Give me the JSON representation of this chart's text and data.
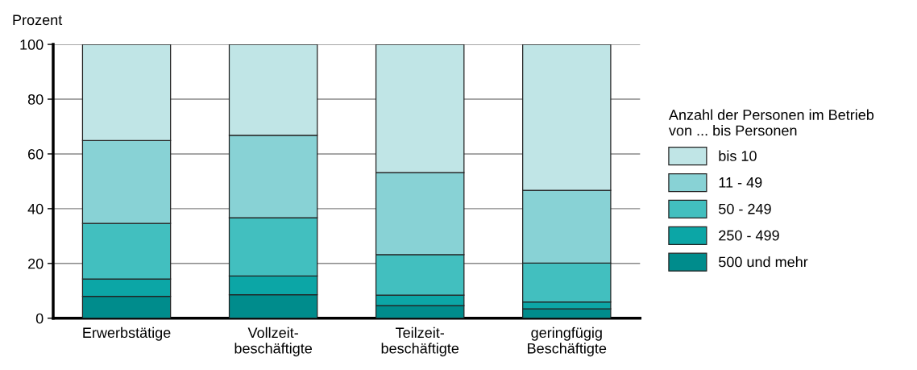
{
  "chart_data": {
    "type": "bar",
    "stacked": true,
    "ylabel": "Prozent",
    "legend_title": "Anzahl der Personen im Betrieb\nvon ... bis Personen",
    "legend": "right",
    "categories": [
      "Erwerbstätige",
      "Vollzeit-\nbeschäftigte",
      "Teilzeit-\nbeschäftigte",
      "geringfügig\nBeschäftigte"
    ],
    "series": [
      {
        "name": "500 und mehr",
        "color": "#008c8c",
        "values": [
          8.0,
          8.6,
          4.6,
          3.4
        ]
      },
      {
        "name": "250 - 499",
        "color": "#0ca6a6",
        "values": [
          6.3,
          6.8,
          3.8,
          2.5
        ]
      },
      {
        "name": "50 - 249",
        "color": "#42bfbf",
        "values": [
          20.3,
          21.3,
          14.8,
          14.2
        ]
      },
      {
        "name": "11 - 49",
        "color": "#88d2d5",
        "values": [
          30.3,
          30.1,
          30.0,
          26.6
        ]
      },
      {
        "name": "bis 10",
        "color": "#c0e5e6",
        "values": [
          35.1,
          33.2,
          46.8,
          53.3
        ]
      }
    ],
    "ylim": [
      0,
      100
    ],
    "yticks": [
      0,
      20,
      40,
      60,
      80,
      100
    ],
    "grid": "y"
  }
}
